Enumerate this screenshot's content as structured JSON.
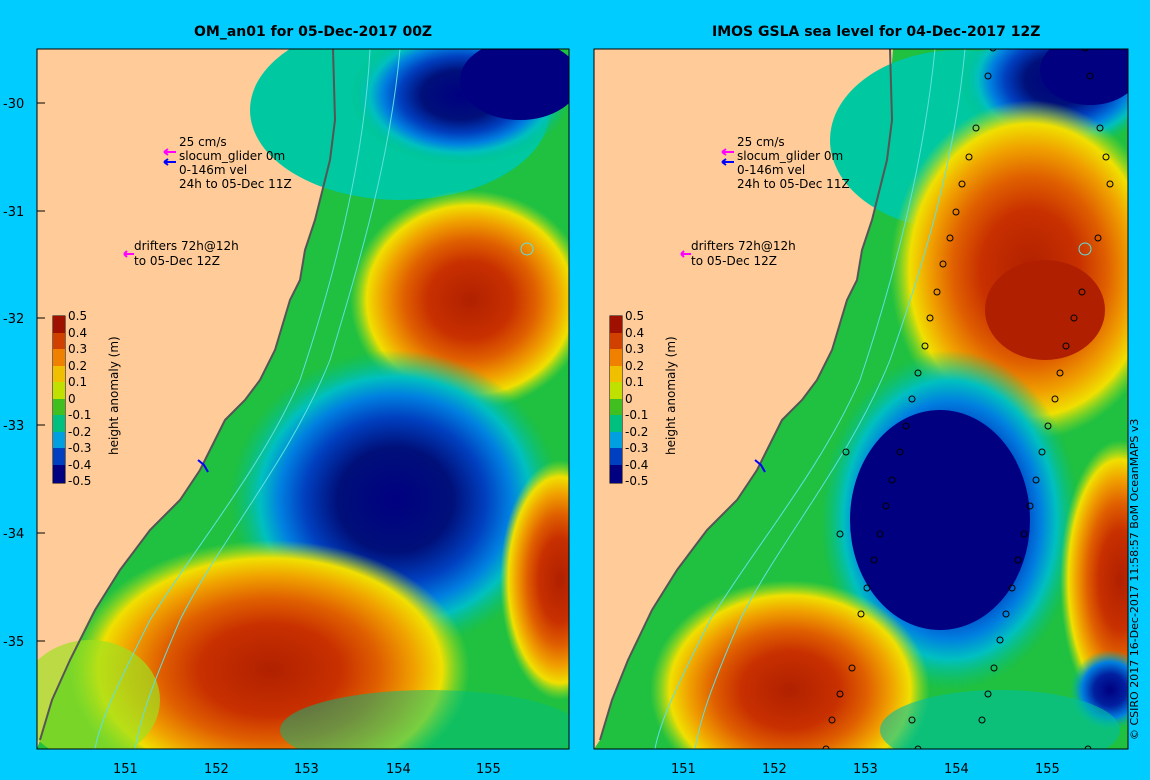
{
  "left_panel": {
    "title": "OM_an01 for 05-Dec-2017 00Z"
  },
  "right_panel": {
    "title": "IMOS GSLA sea level  for 04-Dec-2017 12Z"
  },
  "legend": {
    "scale_line1": "25 cm/s",
    "scale_line2": "slocum_glider 0m",
    "scale_line3": "0-146m vel",
    "scale_line4": "24h to 05-Dec 11Z",
    "drifters_line1": "drifters 72h@12h",
    "drifters_line2": "to 05-Dec 12Z",
    "colors": {
      "arrow_magenta": "#ff00ff",
      "arrow_blue": "#0000ff"
    }
  },
  "colorbar": {
    "label": "height anomaly (m)",
    "ticks": [
      "0.5",
      "0.4",
      "0.3",
      "0.2",
      "0.1",
      "0",
      "-0.1",
      "-0.2",
      "-0.3",
      "-0.4",
      "-0.5"
    ]
  },
  "axes": {
    "lat_ticks": [
      "-30",
      "-31",
      "-32",
      "-33",
      "-34",
      "-35"
    ],
    "lon_ticks": [
      "151",
      "152",
      "153",
      "154",
      "155"
    ]
  },
  "credit": "© CSIRO 2017   16-Dec-2017 11:58:57 BoM OceanMAPS v3",
  "map_colors": {
    "land": "#ffcc99",
    "background": "#00ccff"
  }
}
